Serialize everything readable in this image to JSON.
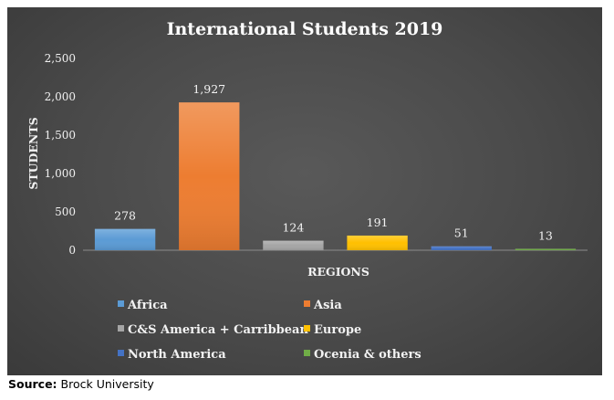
{
  "chart_data": {
    "type": "bar",
    "title": "International Students 2019",
    "xlabel": "REGIONS",
    "ylabel": "STUDENTS",
    "categories": [
      "Africa",
      "Asia",
      "C&S America + Carribbean",
      "Europe",
      "North America",
      "Ocenia & others"
    ],
    "values": [
      278,
      1927,
      124,
      191,
      51,
      13
    ],
    "data_labels": [
      "278",
      "1,927",
      "124",
      "191",
      "51",
      "13"
    ],
    "colors": [
      "#5b9bd5",
      "#ed7d31",
      "#a5a5a5",
      "#ffc000",
      "#4472c4",
      "#70ad47"
    ],
    "ylim": [
      0,
      2500
    ],
    "yticks": [
      0,
      500,
      1000,
      1500,
      2000,
      2500
    ],
    "ytick_labels": [
      "0",
      "500",
      "1,000",
      "1,500",
      "2,000",
      "2,500"
    ],
    "grid": false,
    "legend_position": "bottom"
  },
  "source": {
    "label": "Source:",
    "text": "Brock University"
  }
}
